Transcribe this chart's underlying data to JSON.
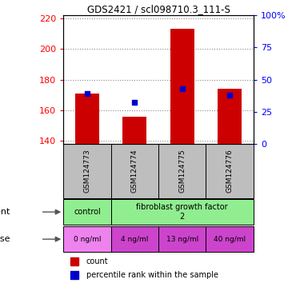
{
  "title": "GDS2421 / scl098710.3_111-S",
  "samples": [
    "GSM124773",
    "GSM124774",
    "GSM124775",
    "GSM124776"
  ],
  "red_values": [
    171,
    156,
    213,
    174
  ],
  "blue_values": [
    171,
    165,
    174,
    170
  ],
  "ylim_left": [
    138,
    222
  ],
  "ylim_right": [
    0,
    100
  ],
  "yticks_left": [
    140,
    160,
    180,
    200,
    220
  ],
  "yticks_right": [
    0,
    25,
    50,
    75,
    100
  ],
  "dose_labels": [
    "0 ng/ml",
    "4 ng/ml",
    "13 ng/ml",
    "40 ng/ml"
  ],
  "green_color": "#90EE90",
  "dose_color_0": "#EE82EE",
  "dose_color_123": "#CC44CC",
  "bar_color": "#CC0000",
  "dot_color": "#0000CC",
  "sample_bg": "#BEBEBE",
  "bar_width": 0.5
}
